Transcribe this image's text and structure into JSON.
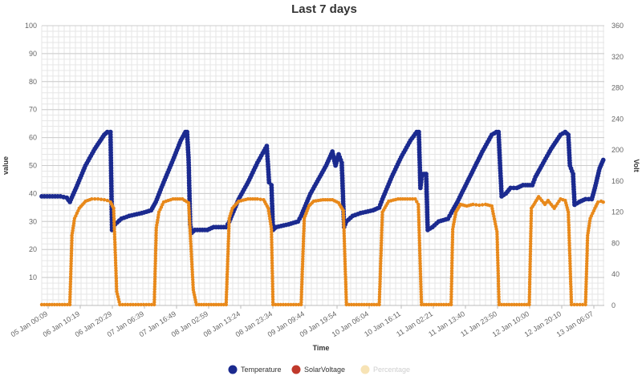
{
  "chart_data": {
    "type": "line",
    "title": "Last 7 days",
    "xlabel": "Time",
    "ylabel_left": "value",
    "ylabel_right": "Volt",
    "ylim_left": [
      0,
      100
    ],
    "yticks_left": [
      "10",
      "20",
      "30",
      "40",
      "50",
      "60",
      "70",
      "80",
      "90",
      "100"
    ],
    "ylim_right": [
      0,
      360
    ],
    "yticks_right": [
      "0",
      "40",
      "80",
      "120",
      "160",
      "200",
      "240",
      "280",
      "320",
      "360"
    ],
    "grid": true,
    "legend_position": "bottom",
    "xlim": [
      "05 Jan 22:00",
      "13 Jan 10:00"
    ],
    "x_tick_labels": [
      "05 Jan 00:09",
      "06 Jan 10:19",
      "06 Jan 20:29",
      "07 Jan 06:39",
      "07 Jan 16:49",
      "08 Jan 02:59",
      "08 Jan 13:24",
      "08 Jan 23:34",
      "09 Jan 09:44",
      "09 Jan 19:54",
      "10 Jan 06:04",
      "10 Jan 16:11",
      "11 Jan 02:21",
      "11 Jan 13:40",
      "11 Jan 23:50",
      "12 Jan 10:00",
      "12 Jan 20:10",
      "13 Jan 06:07"
    ],
    "series": [
      {
        "name": "Temperature",
        "axis": "left",
        "color": "#1b2a8f",
        "points": [
          [
            "05 Jan 22:00",
            39
          ],
          [
            "06 Jan 04:00",
            39
          ],
          [
            "06 Jan 06:00",
            38.5
          ],
          [
            "06 Jan 07:00",
            37
          ],
          [
            "06 Jan 09:00",
            42
          ],
          [
            "06 Jan 12:00",
            50
          ],
          [
            "06 Jan 15:00",
            56
          ],
          [
            "06 Jan 18:00",
            61
          ],
          [
            "06 Jan 19:00",
            62
          ],
          [
            "06 Jan 20:00",
            62
          ],
          [
            "06 Jan 20:30",
            27
          ],
          [
            "06 Jan 21:30",
            29
          ],
          [
            "06 Jan 23:30",
            31
          ],
          [
            "07 Jan 02:00",
            32
          ],
          [
            "07 Jan 06:00",
            33
          ],
          [
            "07 Jan 09:00",
            34
          ],
          [
            "07 Jan 10:30",
            37
          ],
          [
            "07 Jan 13:00",
            44
          ],
          [
            "07 Jan 16:00",
            52
          ],
          [
            "07 Jan 18:30",
            59
          ],
          [
            "07 Jan 20:00",
            62
          ],
          [
            "07 Jan 20:30",
            62
          ],
          [
            "07 Jan 21:00",
            52
          ],
          [
            "07 Jan 21:30",
            29
          ],
          [
            "07 Jan 22:00",
            26
          ],
          [
            "07 Jan 23:00",
            27
          ],
          [
            "08 Jan 03:00",
            27
          ],
          [
            "08 Jan 05:00",
            28
          ],
          [
            "08 Jan 09:00",
            28
          ],
          [
            "08 Jan 10:00",
            30
          ],
          [
            "08 Jan 13:00",
            38
          ],
          [
            "08 Jan 16:00",
            44
          ],
          [
            "08 Jan 19:00",
            51
          ],
          [
            "08 Jan 22:00",
            57
          ],
          [
            "08 Jan 22:45",
            44
          ],
          [
            "08 Jan 23:30",
            43
          ],
          [
            "09 Jan 00:00",
            27
          ],
          [
            "09 Jan 01:00",
            28
          ],
          [
            "09 Jan 05:00",
            29
          ],
          [
            "09 Jan 08:00",
            30
          ],
          [
            "09 Jan 09:00",
            32
          ],
          [
            "09 Jan 12:00",
            40
          ],
          [
            "09 Jan 15:00",
            46
          ],
          [
            "09 Jan 17:00",
            50
          ],
          [
            "09 Jan 19:00",
            55
          ],
          [
            "09 Jan 20:00",
            50
          ],
          [
            "09 Jan 21:00",
            54
          ],
          [
            "09 Jan 22:00",
            51
          ],
          [
            "09 Jan 22:45",
            28
          ],
          [
            "09 Jan 23:30",
            30
          ],
          [
            "10 Jan 01:30",
            32
          ],
          [
            "10 Jan 04:00",
            33
          ],
          [
            "10 Jan 08:00",
            34
          ],
          [
            "10 Jan 10:00",
            35
          ],
          [
            "10 Jan 11:00",
            38
          ],
          [
            "10 Jan 14:00",
            46
          ],
          [
            "10 Jan 17:00",
            53
          ],
          [
            "10 Jan 20:00",
            59
          ],
          [
            "10 Jan 22:00",
            62
          ],
          [
            "10 Jan 22:40",
            62
          ],
          [
            "10 Jan 23:10",
            42
          ],
          [
            "10 Jan 23:40",
            47
          ],
          [
            "11 Jan 01:00",
            47
          ],
          [
            "11 Jan 01:30",
            27
          ],
          [
            "11 Jan 03:00",
            28
          ],
          [
            "11 Jan 05:00",
            30
          ],
          [
            "11 Jan 08:00",
            31
          ],
          [
            "11 Jan 09:00",
            33
          ],
          [
            "11 Jan 11:00",
            37
          ],
          [
            "11 Jan 15:00",
            46
          ],
          [
            "11 Jan 19:00",
            55
          ],
          [
            "11 Jan 22:00",
            61
          ],
          [
            "11 Jan 23:30",
            62
          ],
          [
            "12 Jan 00:10",
            62
          ],
          [
            "12 Jan 00:40",
            50
          ],
          [
            "12 Jan 01:10",
            39
          ],
          [
            "12 Jan 02:30",
            40
          ],
          [
            "12 Jan 04:00",
            42
          ],
          [
            "12 Jan 06:00",
            42
          ],
          [
            "12 Jan 08:00",
            43
          ],
          [
            "12 Jan 11:00",
            43
          ],
          [
            "12 Jan 12:00",
            46
          ],
          [
            "12 Jan 14:00",
            50
          ],
          [
            "12 Jan 17:00",
            56
          ],
          [
            "12 Jan 20:00",
            61
          ],
          [
            "12 Jan 21:30",
            62
          ],
          [
            "12 Jan 22:30",
            61
          ],
          [
            "12 Jan 23:00",
            50
          ],
          [
            "13 Jan 00:00",
            47
          ],
          [
            "13 Jan 00:30",
            36
          ],
          [
            "13 Jan 02:00",
            37
          ],
          [
            "13 Jan 04:00",
            38
          ],
          [
            "13 Jan 06:00",
            38
          ],
          [
            "13 Jan 07:00",
            42
          ],
          [
            "13 Jan 08:30",
            49
          ],
          [
            "13 Jan 09:40",
            52
          ]
        ]
      },
      {
        "name": "SolarVoltage",
        "axis": "right",
        "color": "#c0392b",
        "marker_color": "#e8891b",
        "points": [
          [
            "05 Jan 22:00",
            1
          ],
          [
            "06 Jan 07:00",
            1
          ],
          [
            "06 Jan 07:40",
            90
          ],
          [
            "06 Jan 08:30",
            112
          ],
          [
            "06 Jan 10:00",
            125
          ],
          [
            "06 Jan 12:00",
            134
          ],
          [
            "06 Jan 14:00",
            137
          ],
          [
            "06 Jan 16:00",
            137
          ],
          [
            "06 Jan 18:00",
            136
          ],
          [
            "06 Jan 19:00",
            135
          ],
          [
            "06 Jan 20:00",
            133
          ],
          [
            "06 Jan 21:00",
            125
          ],
          [
            "06 Jan 22:00",
            18
          ],
          [
            "06 Jan 23:00",
            1
          ],
          [
            "07 Jan 10:00",
            1
          ],
          [
            "07 Jan 10:40",
            100
          ],
          [
            "07 Jan 11:30",
            120
          ],
          [
            "07 Jan 13:00",
            133
          ],
          [
            "07 Jan 16:00",
            137
          ],
          [
            "07 Jan 19:00",
            137
          ],
          [
            "07 Jan 21:00",
            132
          ],
          [
            "07 Jan 22:30",
            20
          ],
          [
            "07 Jan 23:30",
            1
          ],
          [
            "08 Jan 09:00",
            1
          ],
          [
            "08 Jan 10:00",
            112
          ],
          [
            "08 Jan 11:00",
            125
          ],
          [
            "08 Jan 13:00",
            134
          ],
          [
            "08 Jan 16:00",
            137
          ],
          [
            "08 Jan 19:00",
            137
          ],
          [
            "08 Jan 21:00",
            136
          ],
          [
            "08 Jan 22:30",
            125
          ],
          [
            "08 Jan 23:30",
            98
          ],
          [
            "09 Jan 00:00",
            1
          ],
          [
            "09 Jan 09:00",
            1
          ],
          [
            "09 Jan 10:00",
            112
          ],
          [
            "09 Jan 11:30",
            128
          ],
          [
            "09 Jan 13:00",
            134
          ],
          [
            "09 Jan 16:00",
            136
          ],
          [
            "09 Jan 19:00",
            136
          ],
          [
            "09 Jan 21:00",
            132
          ],
          [
            "09 Jan 22:30",
            122
          ],
          [
            "09 Jan 23:30",
            1
          ],
          [
            "10 Jan 10:00",
            1
          ],
          [
            "10 Jan 11:00",
            120
          ],
          [
            "10 Jan 13:00",
            134
          ],
          [
            "10 Jan 16:00",
            137
          ],
          [
            "10 Jan 19:00",
            137
          ],
          [
            "10 Jan 21:30",
            137
          ],
          [
            "10 Jan 22:30",
            130
          ],
          [
            "10 Jan 23:30",
            1
          ],
          [
            "11 Jan 09:00",
            1
          ],
          [
            "11 Jan 09:30",
            98
          ],
          [
            "11 Jan 10:30",
            120
          ],
          [
            "11 Jan 12:00",
            130
          ],
          [
            "11 Jan 14:00",
            128
          ],
          [
            "11 Jan 16:00",
            130
          ],
          [
            "11 Jan 18:00",
            129
          ],
          [
            "11 Jan 20:00",
            130
          ],
          [
            "11 Jan 22:00",
            128
          ],
          [
            "11 Jan 23:00",
            108
          ],
          [
            "11 Jan 23:40",
            95
          ],
          [
            "12 Jan 00:20",
            1
          ],
          [
            "12 Jan 10:00",
            1
          ],
          [
            "12 Jan 10:40",
            125
          ],
          [
            "12 Jan 11:30",
            130
          ],
          [
            "12 Jan 13:00",
            140
          ],
          [
            "12 Jan 15:00",
            130
          ],
          [
            "12 Jan 16:00",
            135
          ],
          [
            "12 Jan 18:00",
            125
          ],
          [
            "12 Jan 20:00",
            137
          ],
          [
            "12 Jan 21:30",
            135
          ],
          [
            "12 Jan 22:30",
            120
          ],
          [
            "12 Jan 23:30",
            1
          ],
          [
            "13 Jan 04:00",
            1
          ],
          [
            "13 Jan 04:40",
            90
          ],
          [
            "13 Jan 05:30",
            112
          ],
          [
            "13 Jan 07:00",
            125
          ],
          [
            "13 Jan 08:00",
            133
          ],
          [
            "13 Jan 09:00",
            134
          ],
          [
            "13 Jan 09:40",
            133
          ]
        ]
      },
      {
        "name": "Percentage",
        "axis": "left",
        "color": "#f7e3b5",
        "hidden": true,
        "points": []
      }
    ]
  }
}
